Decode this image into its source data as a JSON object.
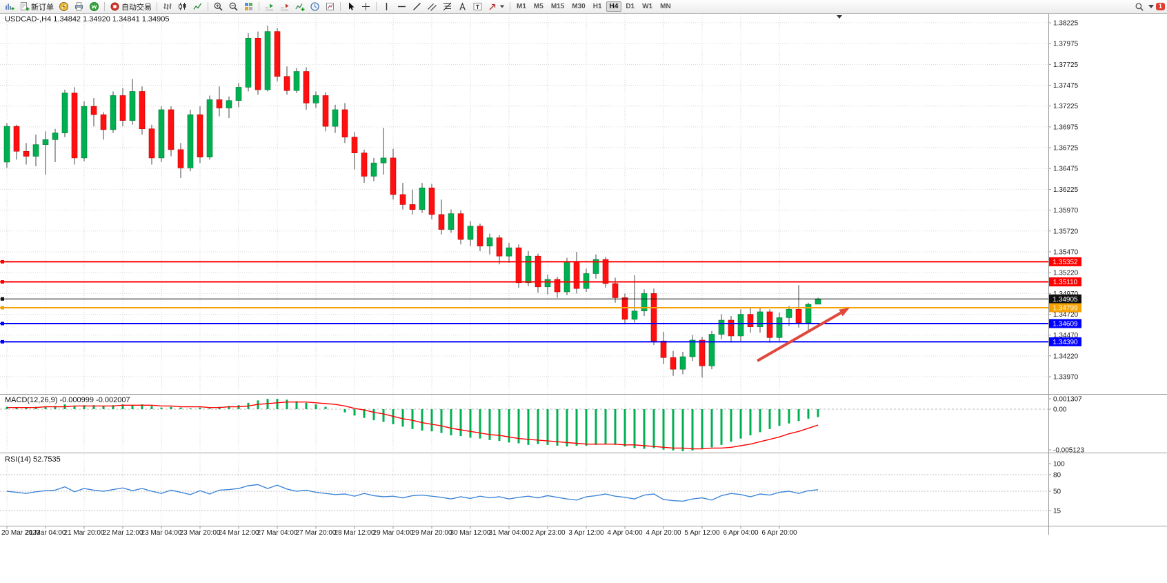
{
  "toolbar": {
    "new_order": "新订单",
    "auto_trading": "自动交易",
    "timeframes": [
      "M1",
      "M5",
      "M15",
      "M30",
      "H1",
      "H4",
      "D1",
      "W1",
      "MN"
    ],
    "active_timeframe": "H4",
    "notification_count": "1",
    "icon_names": [
      "new-chart",
      "new-order",
      "metaeditor-compass",
      "print",
      "mql5-community",
      "auto-trading",
      "bar-chart-mode",
      "candlestick-mode",
      "line-chart-mode",
      "zoom-in",
      "zoom-out",
      "tile-windows",
      "auto-scroll",
      "chart-shift",
      "indicators-list",
      "periods-clock",
      "templates",
      "cursor",
      "crosshair",
      "vertical-line",
      "horizontal-line",
      "trendline",
      "equidistant-channel",
      "fibonacci",
      "text",
      "text-label",
      "arrows",
      "search",
      "dropdown-caret",
      "notification-badge"
    ]
  },
  "chart": {
    "title": "USDCAD-,H4 1.34842 1.34920 1.34841 1.34905",
    "symbol": "USDCAD-",
    "period": "H4",
    "ohlc": {
      "open": "1.34842",
      "high": "1.34920",
      "low": "1.34841",
      "close": "1.34905"
    }
  },
  "chart_data": {
    "type": "candlestick",
    "symbol": "USDCAD",
    "timeframe": "H4",
    "y_range": [
      1.3397,
      1.38225
    ],
    "price_axis_labels": [
      "1.38225",
      "1.37975",
      "1.37725",
      "1.37475",
      "1.37225",
      "1.36975",
      "1.36725",
      "1.36475",
      "1.36225",
      "1.35970",
      "1.35720",
      "1.35470",
      "1.35220",
      "1.34970",
      "1.34720",
      "1.34470",
      "1.34220",
      "1.33970"
    ],
    "time_axis_labels": [
      "20 Mar 2023",
      "21 Mar 04:00",
      "21 Mar 20:00",
      "22 Mar 12:00",
      "23 Mar 04:00",
      "23 Mar 20:00",
      "24 Mar 12:00",
      "27 Mar 04:00",
      "27 Mar 20:00",
      "28 Mar 12:00",
      "29 Mar 04:00",
      "29 Mar 20:00",
      "30 Mar 12:00",
      "31 Mar 04:00",
      "2 Apr 23:00",
      "3 Apr 12:00",
      "4 Apr 04:00",
      "4 Apr 20:00",
      "5 Apr 12:00",
      "6 Apr 04:00",
      "6 Apr 20:00"
    ],
    "candles": [
      [
        1.3655,
        1.3702,
        1.3648,
        1.3698
      ],
      [
        1.3698,
        1.37,
        1.3658,
        1.3668
      ],
      [
        1.3668,
        1.3678,
        1.3652,
        1.3662
      ],
      [
        1.3662,
        1.3688,
        1.365,
        1.3676
      ],
      [
        1.3676,
        1.3692,
        1.364,
        1.3682
      ],
      [
        1.3682,
        1.3695,
        1.3655,
        1.369
      ],
      [
        1.369,
        1.3742,
        1.3685,
        1.3738
      ],
      [
        1.3738,
        1.3745,
        1.3652,
        1.366
      ],
      [
        1.366,
        1.3728,
        1.3656,
        1.3722
      ],
      [
        1.3722,
        1.3732,
        1.3698,
        1.3712
      ],
      [
        1.3712,
        1.3715,
        1.3682,
        1.3694
      ],
      [
        1.3694,
        1.374,
        1.369,
        1.3735
      ],
      [
        1.3735,
        1.3744,
        1.3698,
        1.3705
      ],
      [
        1.3705,
        1.3755,
        1.37,
        1.374
      ],
      [
        1.374,
        1.3746,
        1.3688,
        1.3695
      ],
      [
        1.3695,
        1.37,
        1.3652,
        1.366
      ],
      [
        1.366,
        1.3722,
        1.3655,
        1.3718
      ],
      [
        1.3718,
        1.3722,
        1.3662,
        1.367
      ],
      [
        1.367,
        1.3678,
        1.3636,
        1.3648
      ],
      [
        1.3648,
        1.3718,
        1.3644,
        1.3712
      ],
      [
        1.3712,
        1.3722,
        1.3654,
        1.3661
      ],
      [
        1.3661,
        1.3735,
        1.3658,
        1.373
      ],
      [
        1.373,
        1.3746,
        1.371,
        1.372
      ],
      [
        1.372,
        1.3734,
        1.3708,
        1.3729
      ],
      [
        1.3729,
        1.375,
        1.3721,
        1.3745
      ],
      [
        1.3745,
        1.381,
        1.374,
        1.3804
      ],
      [
        1.3804,
        1.3812,
        1.3736,
        1.3742
      ],
      [
        1.3742,
        1.3819,
        1.374,
        1.3812
      ],
      [
        1.3812,
        1.3816,
        1.3752,
        1.3758
      ],
      [
        1.3758,
        1.377,
        1.3736,
        1.3741
      ],
      [
        1.3741,
        1.3768,
        1.3738,
        1.3764
      ],
      [
        1.3764,
        1.3769,
        1.3718,
        1.3726
      ],
      [
        1.3726,
        1.374,
        1.372,
        1.3735
      ],
      [
        1.3735,
        1.3739,
        1.3692,
        1.3698
      ],
      [
        1.3698,
        1.3724,
        1.369,
        1.3718
      ],
      [
        1.3718,
        1.3726,
        1.3678,
        1.3685
      ],
      [
        1.3685,
        1.3691,
        1.3646,
        1.3666
      ],
      [
        1.3666,
        1.367,
        1.363,
        1.3638
      ],
      [
        1.3638,
        1.366,
        1.3632,
        1.3654
      ],
      [
        1.3654,
        1.3696,
        1.364,
        1.366
      ],
      [
        1.366,
        1.3671,
        1.361,
        1.3616
      ],
      [
        1.3616,
        1.363,
        1.3598,
        1.3604
      ],
      [
        1.3604,
        1.3622,
        1.3592,
        1.3598
      ],
      [
        1.3598,
        1.363,
        1.3594,
        1.3624
      ],
      [
        1.3624,
        1.3629,
        1.3586,
        1.3592
      ],
      [
        1.3592,
        1.361,
        1.3568,
        1.3574
      ],
      [
        1.3574,
        1.3598,
        1.357,
        1.3593
      ],
      [
        1.3593,
        1.3597,
        1.3556,
        1.3562
      ],
      [
        1.3562,
        1.3584,
        1.3554,
        1.3578
      ],
      [
        1.3578,
        1.3581,
        1.3548,
        1.3554
      ],
      [
        1.3554,
        1.3569,
        1.3544,
        1.3564
      ],
      [
        1.3564,
        1.3567,
        1.3532,
        1.3542
      ],
      [
        1.3542,
        1.3558,
        1.3534,
        1.3552
      ],
      [
        1.3552,
        1.3556,
        1.3504,
        1.351
      ],
      [
        1.351,
        1.3548,
        1.3506,
        1.3542
      ],
      [
        1.3542,
        1.3545,
        1.3498,
        1.3505
      ],
      [
        1.3505,
        1.352,
        1.3496,
        1.3514
      ],
      [
        1.3514,
        1.3517,
        1.3492,
        1.3499
      ],
      [
        1.3499,
        1.354,
        1.3495,
        1.3535
      ],
      [
        1.3535,
        1.3547,
        1.3497,
        1.3503
      ],
      [
        1.3503,
        1.3527,
        1.3499,
        1.3521
      ],
      [
        1.3521,
        1.3544,
        1.3515,
        1.3538
      ],
      [
        1.3538,
        1.3541,
        1.3504,
        1.3509
      ],
      [
        1.3509,
        1.3516,
        1.3486,
        1.3492
      ],
      [
        1.3492,
        1.3497,
        1.346,
        1.3466
      ],
      [
        1.3466,
        1.3519,
        1.3462,
        1.3476
      ],
      [
        1.3476,
        1.3502,
        1.347,
        1.3497
      ],
      [
        1.3497,
        1.3503,
        1.3435,
        1.344
      ],
      [
        1.344,
        1.3451,
        1.3412,
        1.342
      ],
      [
        1.342,
        1.3428,
        1.3398,
        1.3406
      ],
      [
        1.3406,
        1.3427,
        1.34,
        1.3421
      ],
      [
        1.3421,
        1.3447,
        1.3416,
        1.3441
      ],
      [
        1.3441,
        1.3445,
        1.3396,
        1.341
      ],
      [
        1.341,
        1.3452,
        1.3406,
        1.3448
      ],
      [
        1.3448,
        1.3472,
        1.3442,
        1.3465
      ],
      [
        1.3465,
        1.347,
        1.3438,
        1.3446
      ],
      [
        1.3446,
        1.3478,
        1.344,
        1.3472
      ],
      [
        1.3472,
        1.348,
        1.345,
        1.3457
      ],
      [
        1.3457,
        1.348,
        1.345,
        1.3475
      ],
      [
        1.3475,
        1.3478,
        1.3438,
        1.3444
      ],
      [
        1.3444,
        1.3474,
        1.344,
        1.3468
      ],
      [
        1.3468,
        1.3482,
        1.3458,
        1.3478
      ],
      [
        1.3478,
        1.3507,
        1.3456,
        1.3462
      ],
      [
        1.3462,
        1.3486,
        1.3453,
        1.3484
      ],
      [
        1.34842,
        1.3492,
        1.34841,
        1.34905
      ]
    ],
    "levels": [
      {
        "label": "1.35352",
        "value": 1.35352,
        "color": "#ff0000",
        "width": 2
      },
      {
        "label": "1.35110",
        "value": 1.3511,
        "color": "#ff0000",
        "width": 2
      },
      {
        "label": "1.34905",
        "value": 1.34905,
        "color": "#111111",
        "width": 1
      },
      {
        "label": "1.34799",
        "value": 1.34799,
        "color": "#f5a200",
        "width": 2
      },
      {
        "label": "1.34609",
        "value": 1.34609,
        "color": "#0000ff",
        "width": 2
      },
      {
        "label": "1.34390",
        "value": 1.3439,
        "color": "#0000ff",
        "width": 2
      }
    ],
    "annotation": {
      "type": "trend-arrow",
      "direction": "up-right",
      "from": [
        1098,
        523
      ],
      "to": [
        1232,
        446
      ],
      "color": "#e0483e"
    },
    "indicators": {
      "macd": {
        "label_full": "MACD(12,26,9) -0.000999 -0.002007",
        "name": "MACD(12,26,9)",
        "values": [
          "-0.000999",
          "-0.002007"
        ],
        "axis_labels": [
          "0.001307",
          "0.00",
          "-0.005123"
        ],
        "range": [
          -0.005123,
          0.001307
        ],
        "histogram": [
          0.0003,
          0.0002,
          0.0002,
          0.0003,
          0.0003,
          0.0004,
          0.0006,
          0.0004,
          0.0005,
          0.0005,
          0.0004,
          0.0005,
          0.0006,
          0.0005,
          0.0006,
          0.0004,
          0.0002,
          0.0003,
          0.0002,
          0.0001,
          0.0002,
          0.0001,
          0.0003,
          0.0004,
          0.0005,
          0.0008,
          0.0011,
          0.0013,
          0.0013,
          0.0012,
          0.001,
          0.0008,
          0.0006,
          0.0003,
          0.0,
          -0.0004,
          -0.0008,
          -0.0011,
          -0.0014,
          -0.0016,
          -0.0019,
          -0.0022,
          -0.0025,
          -0.0027,
          -0.0028,
          -0.003,
          -0.0033,
          -0.0034,
          -0.0036,
          -0.0037,
          -0.0039,
          -0.004,
          -0.0042,
          -0.0043,
          -0.0045,
          -0.0044,
          -0.0045,
          -0.0046,
          -0.0047,
          -0.0046,
          -0.0046,
          -0.0045,
          -0.0044,
          -0.0045,
          -0.0047,
          -0.0049,
          -0.005,
          -0.0049,
          -0.0051,
          -0.0052,
          -0.0053,
          -0.0052,
          -0.005,
          -0.0048,
          -0.0045,
          -0.0041,
          -0.0037,
          -0.0033,
          -0.0029,
          -0.0025,
          -0.0021,
          -0.0018,
          -0.0015,
          -0.0012,
          -0.001
        ],
        "signal": [
          0.0002,
          0.0002,
          0.0002,
          0.0002,
          0.0003,
          0.0003,
          0.0003,
          0.0004,
          0.0004,
          0.0004,
          0.0004,
          0.0004,
          0.0005,
          0.0005,
          0.0005,
          0.0005,
          0.0004,
          0.0004,
          0.0003,
          0.0003,
          0.0003,
          0.0002,
          0.0002,
          0.0003,
          0.0003,
          0.0004,
          0.0006,
          0.0007,
          0.0008,
          0.0009,
          0.0009,
          0.0009,
          0.0008,
          0.0007,
          0.0006,
          0.0004,
          0.0001,
          -0.0001,
          -0.0004,
          -0.0006,
          -0.0009,
          -0.0012,
          -0.0014,
          -0.0017,
          -0.0019,
          -0.0021,
          -0.0024,
          -0.0026,
          -0.0028,
          -0.003,
          -0.0032,
          -0.0033,
          -0.0035,
          -0.0037,
          -0.0038,
          -0.0039,
          -0.004,
          -0.0041,
          -0.0042,
          -0.0043,
          -0.0044,
          -0.0044,
          -0.0044,
          -0.0044,
          -0.0045,
          -0.0045,
          -0.0046,
          -0.0047,
          -0.0048,
          -0.0049,
          -0.0049,
          -0.005,
          -0.005,
          -0.0049,
          -0.0049,
          -0.0048,
          -0.0046,
          -0.0044,
          -0.0041,
          -0.0038,
          -0.0035,
          -0.0031,
          -0.0028,
          -0.0024,
          -0.002
        ]
      },
      "rsi": {
        "label_full": "RSI(14) 52.7535",
        "name": "RSI(14)",
        "value": "52.7535",
        "axis_labels": [
          "100",
          "80",
          "50",
          "15"
        ],
        "level_lines": [
          80,
          50,
          15
        ],
        "series": [
          50,
          48,
          46,
          49,
          51,
          52,
          58,
          49,
          55,
          52,
          50,
          53,
          56,
          51,
          55,
          50,
          46,
          52,
          48,
          44,
          51,
          45,
          52,
          53,
          55,
          60,
          62,
          55,
          61,
          54,
          50,
          52,
          48,
          46,
          44,
          45,
          41,
          46,
          42,
          40,
          41,
          38,
          42,
          43,
          41,
          39,
          36,
          40,
          37,
          41,
          38,
          40,
          36,
          39,
          41,
          38,
          42,
          39,
          36,
          34,
          40,
          42,
          45,
          41,
          39,
          36,
          43,
          45,
          35,
          33,
          32,
          36,
          38,
          34,
          42,
          46,
          44,
          40,
          45,
          43,
          48,
          50,
          46,
          51,
          52.75
        ]
      }
    },
    "colors": {
      "up": "#00b050",
      "up_stroke": "#007a36",
      "down": "#ff1010",
      "down_stroke": "#c00000",
      "wick": "#444444",
      "grid": "#d6d6d6",
      "separator": "#9a9a9a",
      "macd_hist": "#00b050",
      "macd_signal": "#ff0000",
      "rsi_line": "#3e86d8",
      "axis_text": "#1a1a1a"
    }
  }
}
